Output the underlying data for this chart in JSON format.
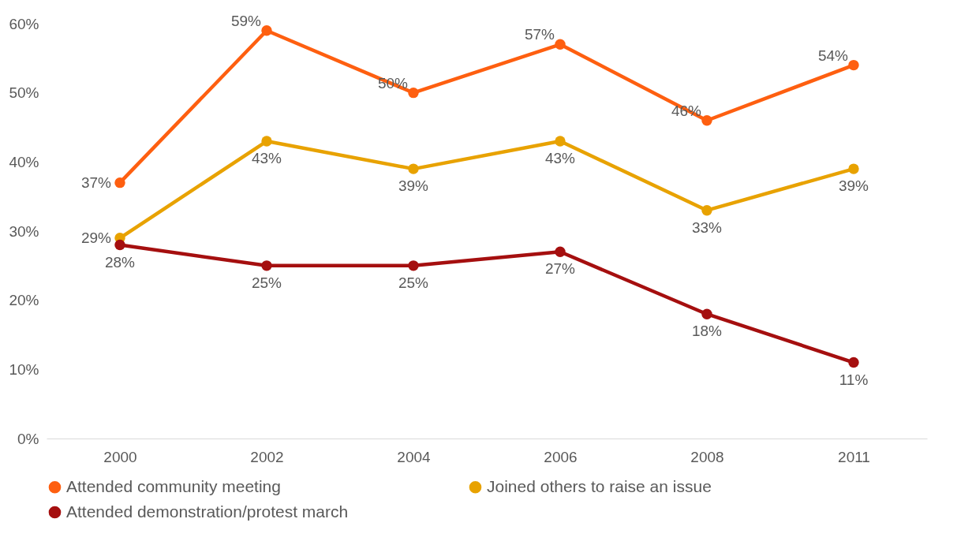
{
  "chart_data": {
    "type": "line",
    "categories": [
      "2000",
      "2002",
      "2004",
      "2006",
      "2008",
      "2011"
    ],
    "series": [
      {
        "name": "Attended community meeting",
        "color": "#fe5f10",
        "values": [
          37,
          59,
          50,
          57,
          46,
          54
        ],
        "value_labels": [
          "37%",
          "59%",
          "50%",
          "57%",
          "46%",
          "54%"
        ]
      },
      {
        "name": "Joined others to raise an issue",
        "color": "#e8a200",
        "values": [
          29,
          43,
          39,
          43,
          33,
          39
        ],
        "value_labels": [
          "29%",
          "43%",
          "39%",
          "43%",
          "33%",
          "39%"
        ]
      },
      {
        "name": "Attended demonstration/protest march",
        "color": "#a50f0f",
        "values": [
          28,
          25,
          25,
          27,
          18,
          11
        ],
        "value_labels": [
          "28%",
          "25%",
          "25%",
          "27%",
          "18%",
          "11%"
        ]
      }
    ],
    "ylim": [
      0,
      60
    ],
    "yticks": [
      {
        "value": 0,
        "label": "0%"
      },
      {
        "value": 10,
        "label": "10%"
      },
      {
        "value": 20,
        "label": "20%"
      },
      {
        "value": 30,
        "label": "30%"
      },
      {
        "value": 40,
        "label": "40%"
      },
      {
        "value": 50,
        "label": "50%"
      },
      {
        "value": 60,
        "label": "60%"
      }
    ],
    "grid": false,
    "legend": "bottom",
    "marker": "circle",
    "line_style": "solid"
  }
}
